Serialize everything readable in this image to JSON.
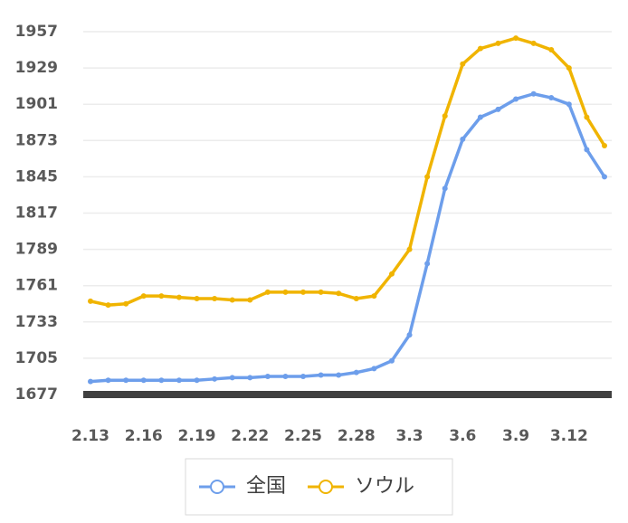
{
  "chart_data": {
    "type": "line",
    "categories": [
      "2.13",
      null,
      null,
      "2.16",
      null,
      null,
      "2.19",
      null,
      null,
      "2.22",
      null,
      null,
      "2.25",
      null,
      null,
      "2.28",
      null,
      null,
      "3.3",
      null,
      null,
      "3.6",
      null,
      null,
      "3.9",
      null,
      null,
      "3.12",
      null,
      null
    ],
    "series": [
      {
        "name": "全国",
        "color": "#6d9eeb",
        "values": [
          1687,
          1688,
          1688,
          1688,
          1688,
          1688,
          1688,
          1689,
          1690,
          1690,
          1691,
          1691,
          1691,
          1692,
          1692,
          1694,
          1697,
          1703,
          1723,
          1778,
          1836,
          1874,
          1891,
          1897,
          1905,
          1909,
          1906,
          1901,
          1866,
          1845
        ]
      },
      {
        "name": "ソウル",
        "color": "#f0b400",
        "values": [
          1749,
          1746,
          1747,
          1753,
          1753,
          1752,
          1751,
          1751,
          1750,
          1750,
          1756,
          1756,
          1756,
          1756,
          1755,
          1751,
          1753,
          1770,
          1789,
          1845,
          1892,
          1932,
          1944,
          1948,
          1952,
          1948,
          1943,
          1929,
          1891,
          1869
        ]
      }
    ],
    "ylim": [
      1677,
      1957
    ],
    "yticks": [
      1677,
      1705,
      1733,
      1761,
      1789,
      1817,
      1845,
      1873,
      1901,
      1929,
      1957
    ],
    "grid": true,
    "legend": "bottom"
  }
}
